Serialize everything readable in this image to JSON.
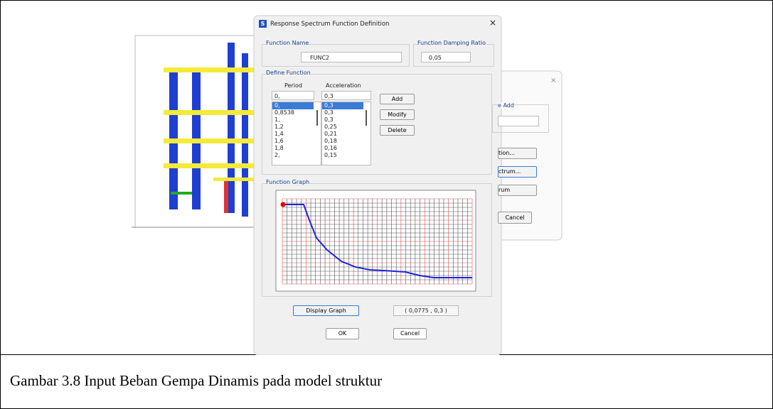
{
  "background_dialog": {
    "labels": [
      "e Add",
      "tion...",
      "ctrum...",
      "rum",
      "Cancel"
    ]
  },
  "dialog": {
    "icon": "S",
    "title": "Response Spectrum  Function Definition",
    "close": "×",
    "function_name": {
      "label": "Function Name",
      "value": "FUNC2"
    },
    "damping": {
      "label": "Function Damping Ratio",
      "value": "0,05"
    },
    "define_function": {
      "label": "Define Function",
      "period_header": "Period",
      "acceleration_header": "Acceleration",
      "period_input": "0,",
      "acceleration_input": "0,3",
      "periods": [
        "0,",
        "0,8538",
        "1,",
        "1,2",
        "1,4",
        "1,6",
        "1,8",
        "2,"
      ],
      "accelerations": [
        "0,3",
        "0,3",
        "0,3",
        "0,25",
        "0,21",
        "0,18",
        "0,16",
        "0,15"
      ],
      "buttons": [
        "Add",
        "Modify",
        "Delete"
      ]
    },
    "graph": {
      "label": "Function Graph",
      "display_button": "Display Graph",
      "coordinates": "( 0,0775  ,  0,3 )"
    },
    "buttons": [
      "OK",
      "Cancel"
    ]
  },
  "caption": "Gambar 3.8 Input Beban Gempa Dinamis pada model struktur"
}
